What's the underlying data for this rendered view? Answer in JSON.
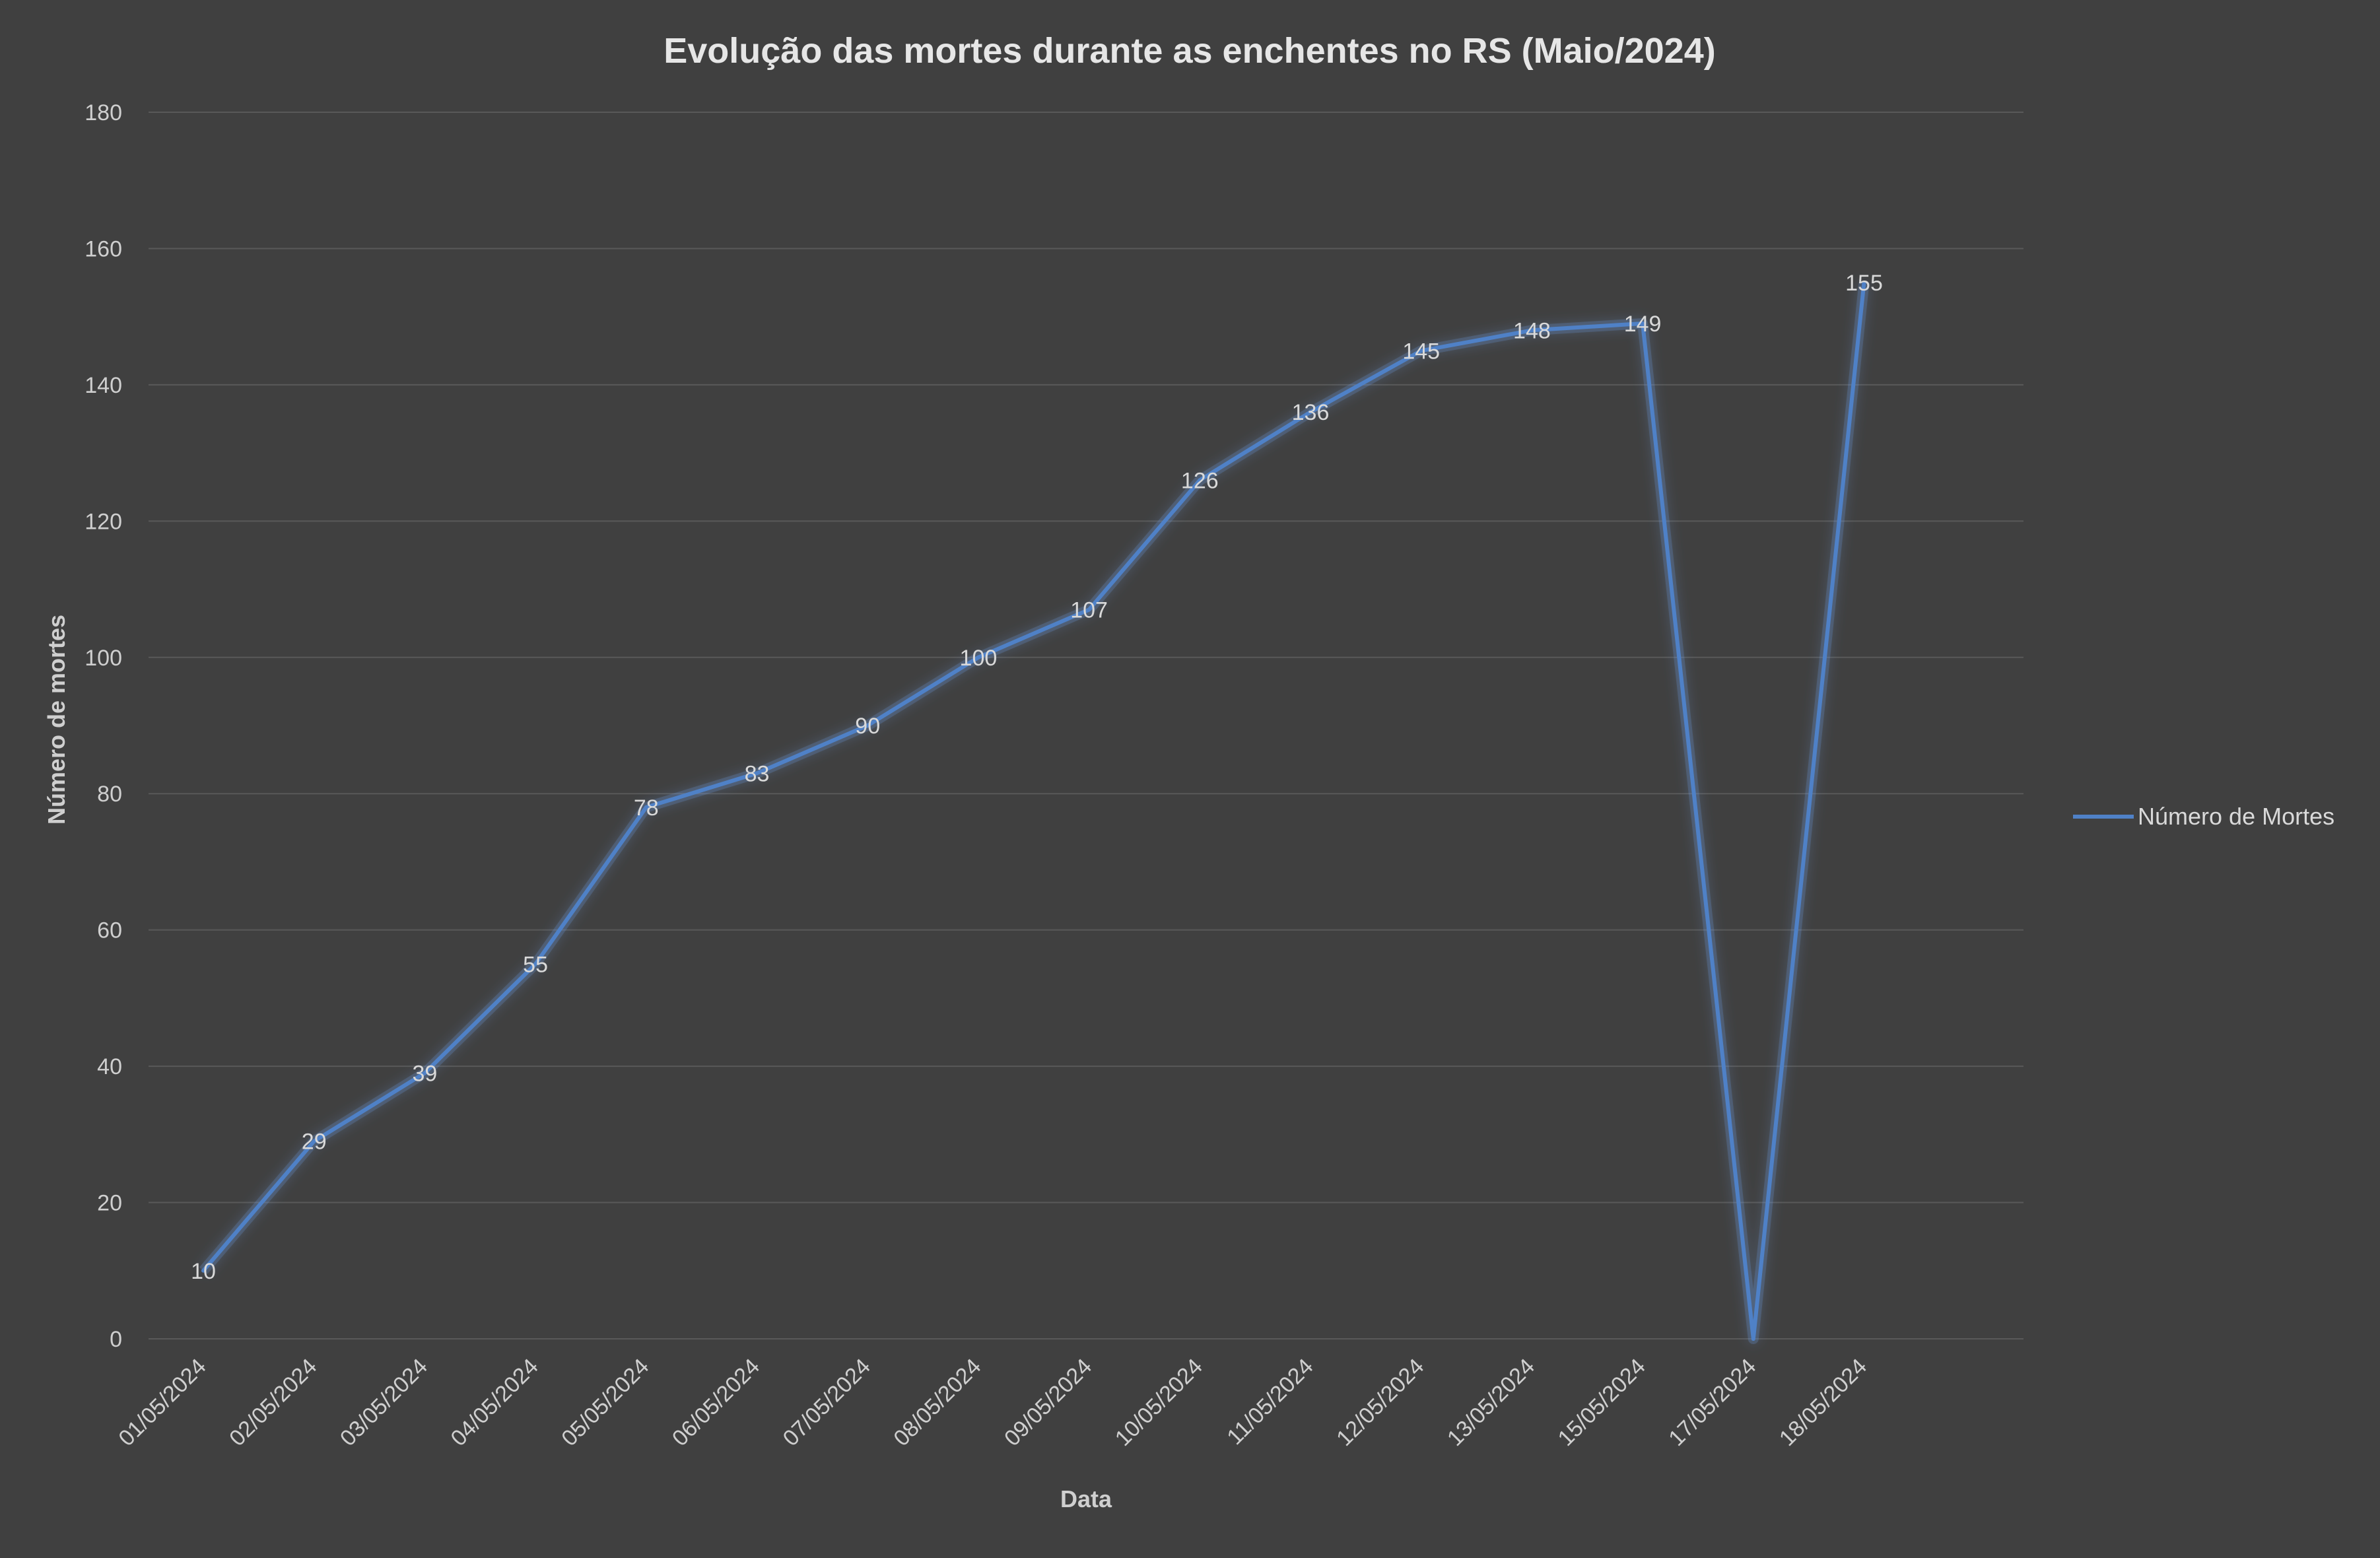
{
  "chart_data": {
    "type": "line",
    "title": "Evolução das mortes durante as enchentes no RS (Maio/2024)",
    "xlabel": "Data",
    "ylabel": "Número de mortes",
    "categories": [
      "01/05/2024",
      "02/05/2024",
      "03/05/2024",
      "04/05/2024",
      "05/05/2024",
      "06/05/2024",
      "07/05/2024",
      "08/05/2024",
      "09/05/2024",
      "10/05/2024",
      "11/05/2024",
      "12/05/2024",
      "13/05/2024",
      "15/05/2024",
      "17/05/2024",
      "18/05/2024"
    ],
    "series": [
      {
        "name": "Número de Mortes",
        "values": [
          10,
          29,
          39,
          55,
          78,
          83,
          90,
          100,
          107,
          126,
          136,
          145,
          148,
          149,
          0,
          155
        ],
        "data_labels": [
          "10",
          "29",
          "39",
          "55",
          "78",
          "83",
          "90",
          "100",
          "107",
          "126",
          "136",
          "145",
          "148",
          "149",
          "",
          "155"
        ],
        "color": "#4f81c7"
      }
    ],
    "yticks": [
      "0",
      "20",
      "40",
      "60",
      "80",
      "100",
      "120",
      "140",
      "160",
      "180"
    ],
    "ylim": [
      0,
      180
    ],
    "grid": true,
    "legend_position": "right",
    "background": "#404040"
  }
}
